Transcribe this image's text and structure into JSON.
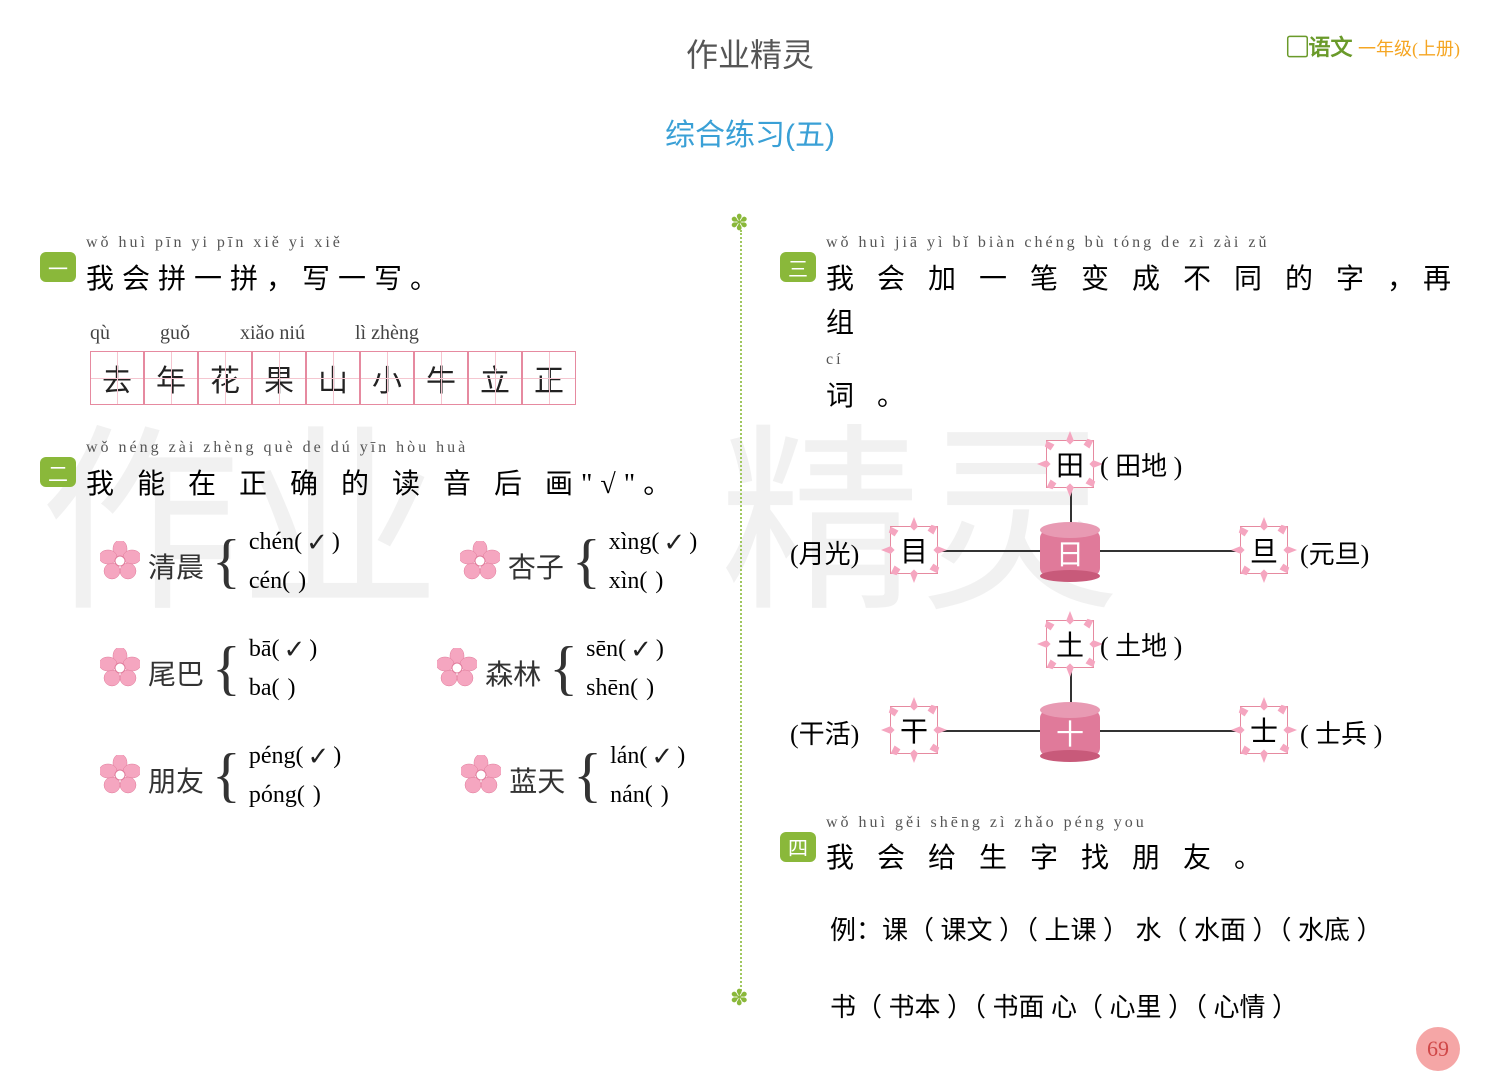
{
  "header": {
    "title": "作业精灵",
    "subject": "语文",
    "grade": "一年级(上册)",
    "subtitle": "综合练习(五)",
    "page_number": "69"
  },
  "watermarks": [
    "作业",
    "精灵"
  ],
  "q1": {
    "badge": "一",
    "ruby": "wǒ huì pīn yi pīn   xiě yi xiě",
    "text": "我会拼一拼，写一写。",
    "pinyin_row": [
      "qù",
      "guǒ",
      "xiǎo niú",
      "lì  zhèng"
    ],
    "chars": [
      "去",
      "年",
      "花",
      "果",
      "山",
      "小",
      "牛",
      "立",
      "正"
    ]
  },
  "q2": {
    "badge": "二",
    "ruby": "wǒ néng zài zhèng què de dú yīn hòu huà",
    "text": "我 能 在 正 确 的 读 音 后 画\"√\"。",
    "groups": [
      {
        "label": "清晨",
        "opts": [
          {
            "py": "chén",
            "chk": true
          },
          {
            "py": "cén",
            "chk": false
          }
        ]
      },
      {
        "label": "杏子",
        "opts": [
          {
            "py": "xìng",
            "chk": true
          },
          {
            "py": "xìn",
            "chk": false
          }
        ]
      },
      {
        "label": "尾巴",
        "opts": [
          {
            "py": "bā",
            "chk": true
          },
          {
            "py": "ba",
            "chk": false
          }
        ]
      },
      {
        "label": "森林",
        "opts": [
          {
            "py": "sēn",
            "chk": true
          },
          {
            "py": "shēn",
            "chk": false
          }
        ]
      },
      {
        "label": "朋友",
        "opts": [
          {
            "py": "péng",
            "chk": true
          },
          {
            "py": "póng",
            "chk": false
          }
        ]
      },
      {
        "label": "蓝天",
        "opts": [
          {
            "py": "lán",
            "chk": true
          },
          {
            "py": "nán",
            "chk": false
          }
        ]
      }
    ]
  },
  "q3": {
    "badge": "三",
    "ruby1": "wǒ huì jiā yì bǐ biàn chéng bù tóng de zì   zài zǔ",
    "text1": "我 会 加 一 笔 变 成 不 同 的 字 ，再 组",
    "ruby2": "cí",
    "text2": "词 。",
    "diagram1": {
      "center": "日",
      "left": {
        "char": "目",
        "word": "(月光)"
      },
      "top": {
        "char": "田",
        "word": "( 田地 )"
      },
      "right": {
        "char": "旦",
        "word": "(元旦)"
      }
    },
    "diagram2": {
      "center": "十",
      "left": {
        "char": "干",
        "word": "(干活)"
      },
      "top": {
        "char": "土",
        "word": "( 土地 )"
      },
      "right": {
        "char": "士",
        "word": "( 士兵 )"
      }
    }
  },
  "q4": {
    "badge": "四",
    "ruby": "wǒ huì gěi shēng zì zhǎo péng you",
    "text": "我 会 给 生 字 找 朋 友 。",
    "example": "例：课（ 课文 ）（ 上课 ）  水（ 水面 ）（ 水底 ）",
    "line2": "书（ 书本 ）（ 书面    心（ 心里 ）（ 心情 ）"
  },
  "colors": {
    "green": "#8ab83a",
    "blue": "#3aa0d6",
    "pink": "#e68aa0",
    "flower": "#f5a6c0",
    "cyl": "#e07a9a"
  }
}
